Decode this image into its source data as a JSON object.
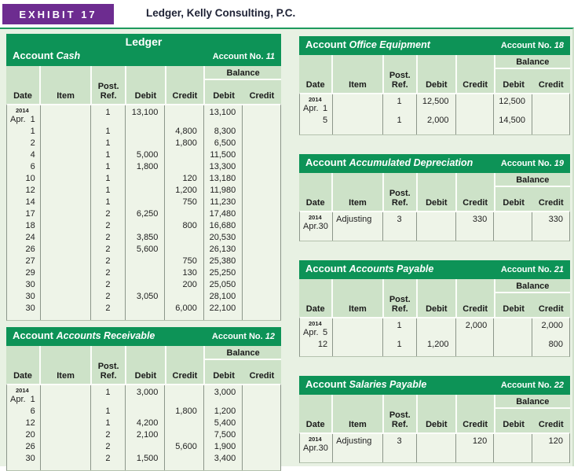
{
  "exhibit": {
    "label": "EXHIBIT 17",
    "title": "Ledger, Kelly Consulting, P.C."
  },
  "ledger_title": "Ledger",
  "labels": {
    "account": "Account",
    "account_no": "Account No.",
    "balance": "Balance"
  },
  "columns": {
    "date": "Date",
    "item": "Item",
    "ref_line1": "Post.",
    "ref_line2": "Ref.",
    "debit": "Debit",
    "credit": "Credit",
    "bal_debit": "Debit",
    "bal_credit": "Credit"
  },
  "colors": {
    "exhibit_purple": "#6d2c90",
    "band_green": "#0d9357",
    "header_green": "#cde2c8",
    "body_green": "#eef4e8",
    "panel_green": "#e8f1e3"
  },
  "accounts": {
    "cash": {
      "name": "Cash",
      "no": "11",
      "rows": [
        {
          "yr": "2014",
          "mo": "Apr.",
          "day": "1",
          "item": "",
          "ref": "1",
          "dr": "13,100",
          "cr": "",
          "bdr": "13,100",
          "bcr": ""
        },
        {
          "yr": "",
          "mo": "",
          "day": "1",
          "item": "",
          "ref": "1",
          "dr": "",
          "cr": "4,800",
          "bdr": "8,300",
          "bcr": ""
        },
        {
          "yr": "",
          "mo": "",
          "day": "2",
          "item": "",
          "ref": "1",
          "dr": "",
          "cr": "1,800",
          "bdr": "6,500",
          "bcr": ""
        },
        {
          "yr": "",
          "mo": "",
          "day": "4",
          "item": "",
          "ref": "1",
          "dr": "5,000",
          "cr": "",
          "bdr": "11,500",
          "bcr": ""
        },
        {
          "yr": "",
          "mo": "",
          "day": "6",
          "item": "",
          "ref": "1",
          "dr": "1,800",
          "cr": "",
          "bdr": "13,300",
          "bcr": ""
        },
        {
          "yr": "",
          "mo": "",
          "day": "10",
          "item": "",
          "ref": "1",
          "dr": "",
          "cr": "120",
          "bdr": "13,180",
          "bcr": ""
        },
        {
          "yr": "",
          "mo": "",
          "day": "12",
          "item": "",
          "ref": "1",
          "dr": "",
          "cr": "1,200",
          "bdr": "11,980",
          "bcr": ""
        },
        {
          "yr": "",
          "mo": "",
          "day": "14",
          "item": "",
          "ref": "1",
          "dr": "",
          "cr": "750",
          "bdr": "11,230",
          "bcr": ""
        },
        {
          "yr": "",
          "mo": "",
          "day": "17",
          "item": "",
          "ref": "2",
          "dr": "6,250",
          "cr": "",
          "bdr": "17,480",
          "bcr": ""
        },
        {
          "yr": "",
          "mo": "",
          "day": "18",
          "item": "",
          "ref": "2",
          "dr": "",
          "cr": "800",
          "bdr": "16,680",
          "bcr": ""
        },
        {
          "yr": "",
          "mo": "",
          "day": "24",
          "item": "",
          "ref": "2",
          "dr": "3,850",
          "cr": "",
          "bdr": "20,530",
          "bcr": ""
        },
        {
          "yr": "",
          "mo": "",
          "day": "26",
          "item": "",
          "ref": "2",
          "dr": "5,600",
          "cr": "",
          "bdr": "26,130",
          "bcr": ""
        },
        {
          "yr": "",
          "mo": "",
          "day": "27",
          "item": "",
          "ref": "2",
          "dr": "",
          "cr": "750",
          "bdr": "25,380",
          "bcr": ""
        },
        {
          "yr": "",
          "mo": "",
          "day": "29",
          "item": "",
          "ref": "2",
          "dr": "",
          "cr": "130",
          "bdr": "25,250",
          "bcr": ""
        },
        {
          "yr": "",
          "mo": "",
          "day": "30",
          "item": "",
          "ref": "2",
          "dr": "",
          "cr": "200",
          "bdr": "25,050",
          "bcr": ""
        },
        {
          "yr": "",
          "mo": "",
          "day": "30",
          "item": "",
          "ref": "2",
          "dr": "3,050",
          "cr": "",
          "bdr": "28,100",
          "bcr": ""
        },
        {
          "yr": "",
          "mo": "",
          "day": "30",
          "item": "",
          "ref": "2",
          "dr": "",
          "cr": "6,000",
          "bdr": "22,100",
          "bcr": ""
        }
      ]
    },
    "accounts_receivable": {
      "name": "Accounts Receivable",
      "no": "12",
      "rows": [
        {
          "yr": "2014",
          "mo": "Apr.",
          "day": "1",
          "item": "",
          "ref": "1",
          "dr": "3,000",
          "cr": "",
          "bdr": "3,000",
          "bcr": ""
        },
        {
          "yr": "",
          "mo": "",
          "day": "6",
          "item": "",
          "ref": "1",
          "dr": "",
          "cr": "1,800",
          "bdr": "1,200",
          "bcr": ""
        },
        {
          "yr": "",
          "mo": "",
          "day": "12",
          "item": "",
          "ref": "1",
          "dr": "4,200",
          "cr": "",
          "bdr": "5,400",
          "bcr": ""
        },
        {
          "yr": "",
          "mo": "",
          "day": "20",
          "item": "",
          "ref": "2",
          "dr": "2,100",
          "cr": "",
          "bdr": "7,500",
          "bcr": ""
        },
        {
          "yr": "",
          "mo": "",
          "day": "26",
          "item": "",
          "ref": "2",
          "dr": "",
          "cr": "5,600",
          "bdr": "1,900",
          "bcr": ""
        },
        {
          "yr": "",
          "mo": "",
          "day": "30",
          "item": "",
          "ref": "2",
          "dr": "1,500",
          "cr": "",
          "bdr": "3,400",
          "bcr": ""
        }
      ]
    },
    "office_equipment": {
      "name": "Office Equipment",
      "no": "18",
      "rows": [
        {
          "yr": "2014",
          "mo": "Apr.",
          "day": "1",
          "item": "",
          "ref": "1",
          "dr": "12,500",
          "cr": "",
          "bdr": "12,500",
          "bcr": ""
        },
        {
          "yr": "",
          "mo": "",
          "day": "5",
          "item": "",
          "ref": "1",
          "dr": "2,000",
          "cr": "",
          "bdr": "14,500",
          "bcr": ""
        }
      ]
    },
    "accumulated_depreciation": {
      "name": "Accumulated Depreciation",
      "no": "19",
      "rows": [
        {
          "yr": "2014",
          "mo": "Apr.",
          "day": "30",
          "item": "Adjusting",
          "ref": "3",
          "dr": "",
          "cr": "330",
          "bdr": "",
          "bcr": "330"
        }
      ]
    },
    "accounts_payable": {
      "name": "Accounts Payable",
      "no": "21",
      "rows": [
        {
          "yr": "2014",
          "mo": "Apr.",
          "day": "5",
          "item": "",
          "ref": "1",
          "dr": "",
          "cr": "2,000",
          "bdr": "",
          "bcr": "2,000"
        },
        {
          "yr": "",
          "mo": "",
          "day": "12",
          "item": "",
          "ref": "1",
          "dr": "1,200",
          "cr": "",
          "bdr": "",
          "bcr": "800"
        }
      ]
    },
    "salaries_payable": {
      "name": "Salaries Payable",
      "no": "22",
      "rows": [
        {
          "yr": "2014",
          "mo": "Apr.",
          "day": "30",
          "item": "Adjusting",
          "ref": "3",
          "dr": "",
          "cr": "120",
          "bdr": "",
          "bcr": "120"
        }
      ]
    }
  }
}
